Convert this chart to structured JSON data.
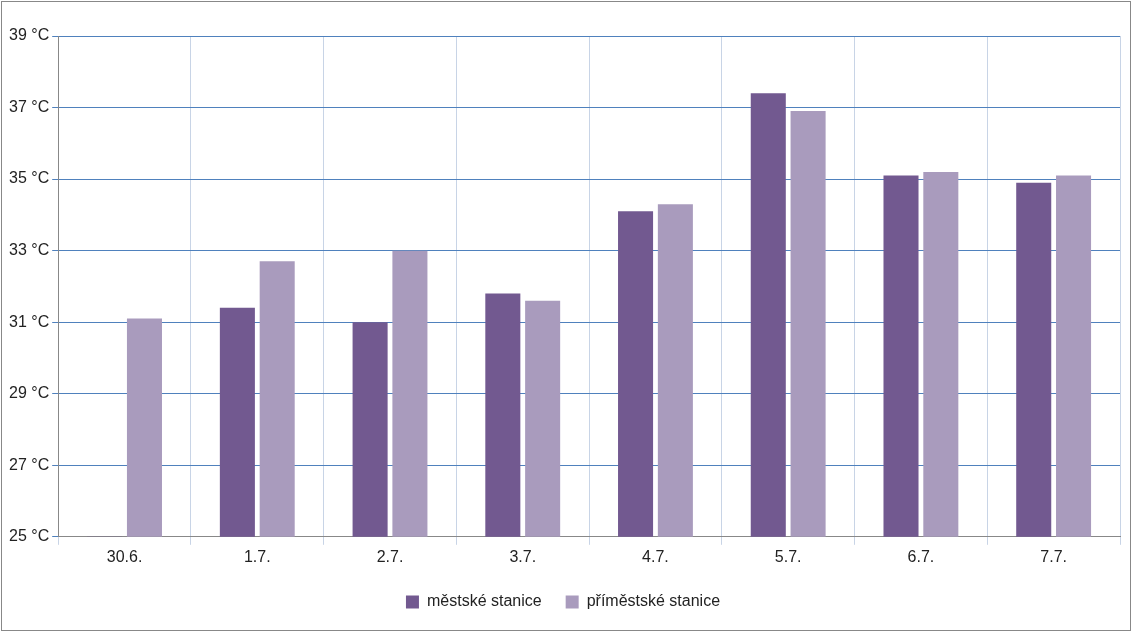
{
  "chart_data": {
    "type": "bar",
    "categories": [
      "30.6.",
      "1.7.",
      "2.7.",
      "3.7.",
      "4.7.",
      "5.7.",
      "6.7.",
      "7.7."
    ],
    "series": [
      {
        "name": "městské stanice",
        "color": "#725990",
        "values": [
          25,
          31.4,
          31,
          31.8,
          34.1,
          37.4,
          35.1,
          34.9
        ]
      },
      {
        "name": "příměstské stanice",
        "color": "#a99bbd",
        "values": [
          31.1,
          32.7,
          33,
          31.6,
          34.3,
          36.9,
          35.2,
          35.1
        ]
      }
    ],
    "ylim": [
      25,
      39
    ],
    "yticks": [
      {
        "value": 25,
        "label": "25 °C"
      },
      {
        "value": 27,
        "label": "27 °C"
      },
      {
        "value": 29,
        "label": "29 °C"
      },
      {
        "value": 31,
        "label": "31 °C"
      },
      {
        "value": 33,
        "label": "33 °C"
      },
      {
        "value": 35,
        "label": "35 °C"
      },
      {
        "value": 37,
        "label": "37 °C"
      },
      {
        "value": 39,
        "label": "39 °C"
      }
    ],
    "grid": true,
    "legend": "bottom"
  }
}
